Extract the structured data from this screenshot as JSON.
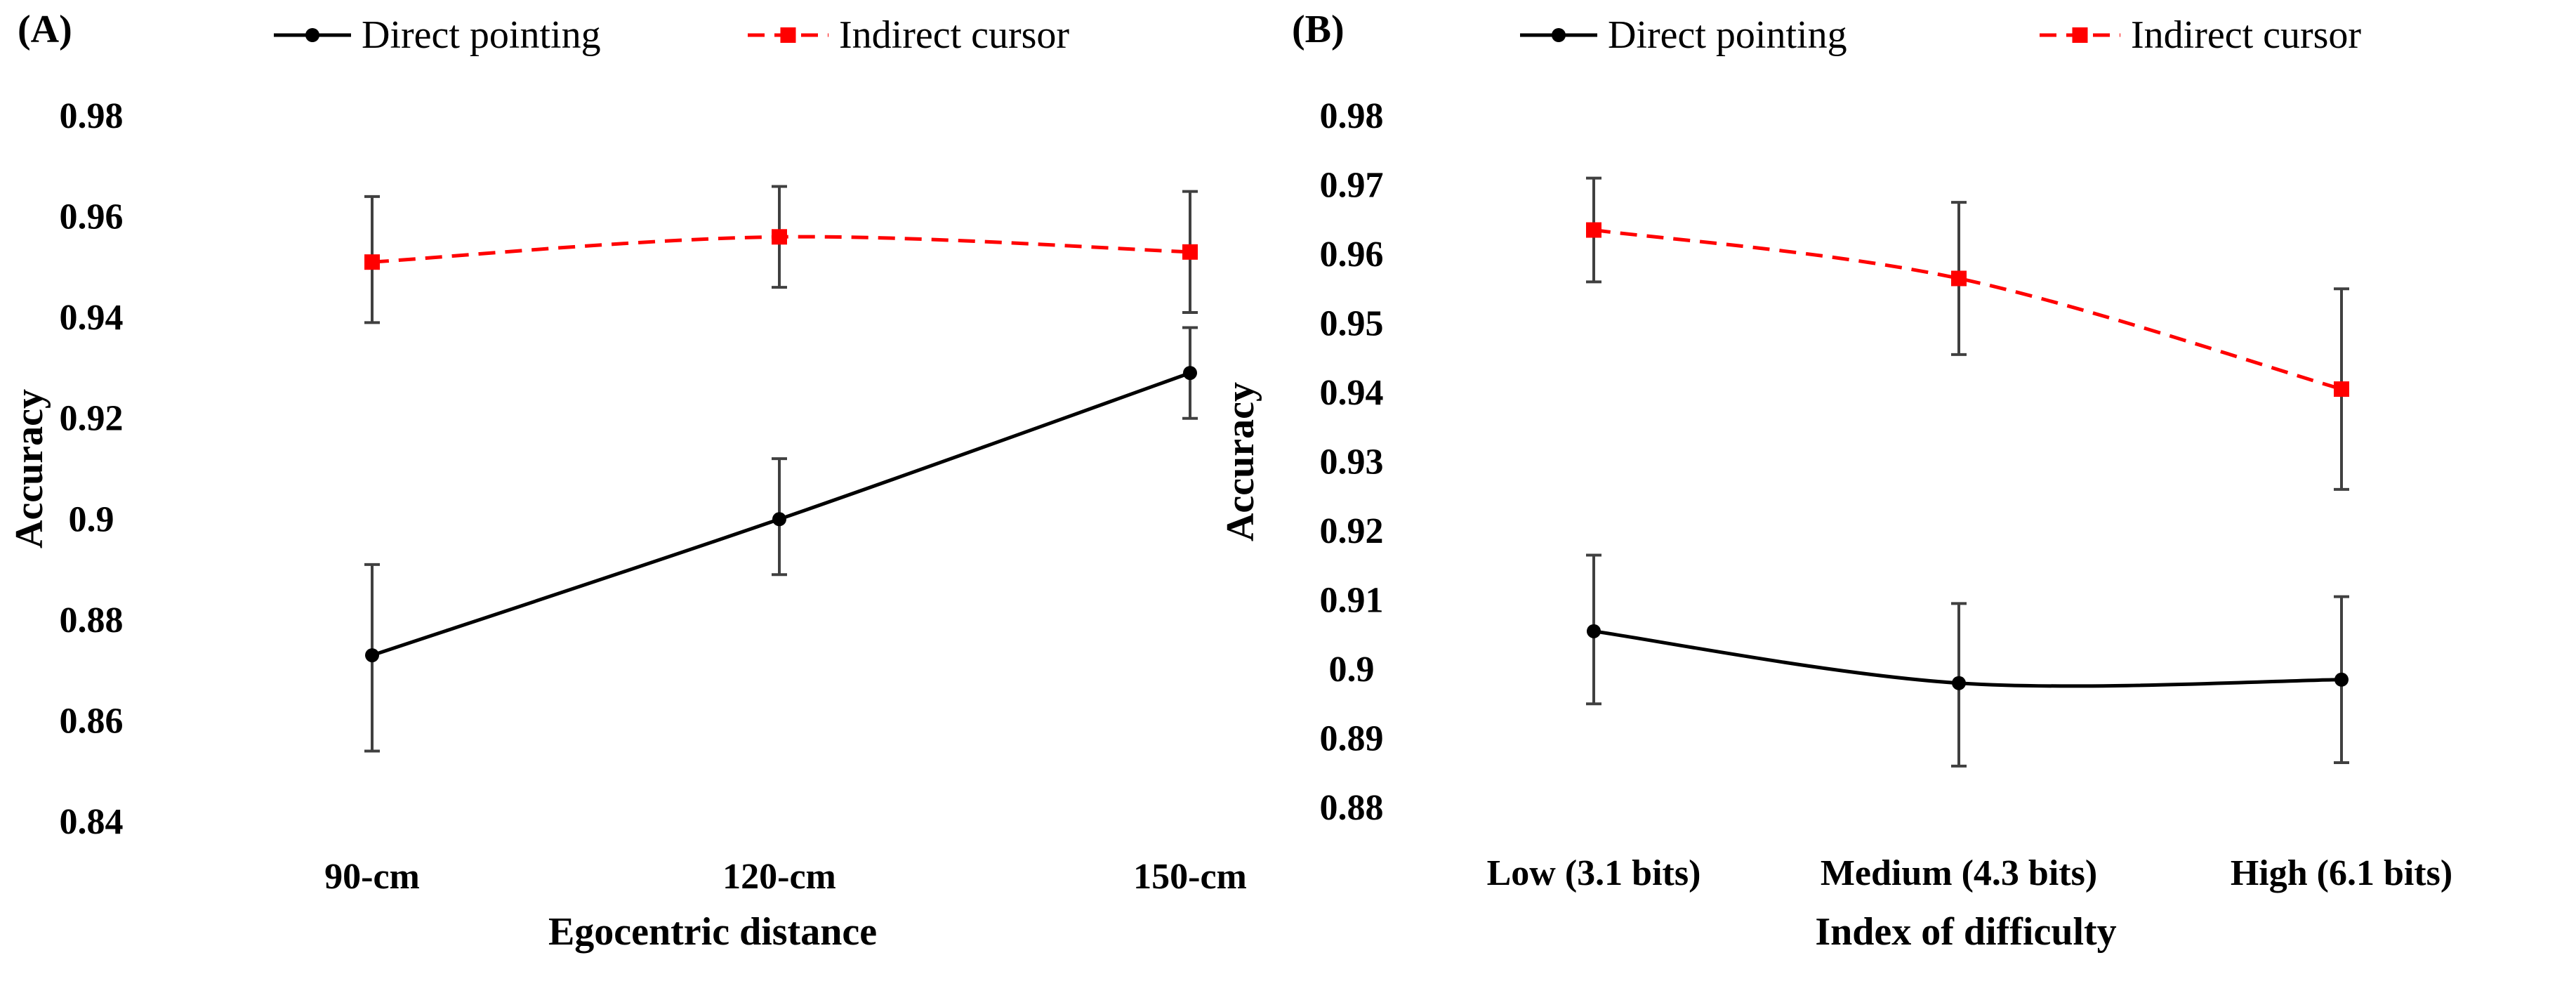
{
  "chart_data": [
    {
      "type": "line",
      "panel_label": "(A)",
      "title": "",
      "xlabel": "Egocentric distance",
      "ylabel": "Accuracy",
      "categories": [
        "90-cm",
        "120-cm",
        "150-cm"
      ],
      "ylim": [
        0.84,
        0.98
      ],
      "yticks": [
        0.84,
        0.86,
        0.88,
        0.9,
        0.92,
        0.94,
        0.96,
        0.98
      ],
      "ytick_labels": [
        "0.84",
        "0.86",
        "0.88",
        "0.9",
        "0.92",
        "0.94",
        "0.96",
        "0.98"
      ],
      "grid": false,
      "legend_position": "top",
      "series": [
        {
          "name": "Direct pointing",
          "color": "#000000",
          "style": "solid",
          "marker": "circle",
          "values": [
            0.873,
            0.9,
            0.929
          ],
          "err_low": [
            0.854,
            0.889,
            0.92
          ],
          "err_high": [
            0.891,
            0.912,
            0.938
          ]
        },
        {
          "name": "Indirect cursor",
          "color": "#ff0000",
          "style": "dashed",
          "marker": "square",
          "values": [
            0.951,
            0.956,
            0.953
          ],
          "err_low": [
            0.939,
            0.946,
            0.941
          ],
          "err_high": [
            0.964,
            0.966,
            0.965
          ]
        }
      ]
    },
    {
      "type": "line",
      "panel_label": "(B)",
      "title": "",
      "xlabel": "Index of difficulty",
      "ylabel": "Accuracy",
      "categories": [
        "Low (3.1 bits)",
        "Medium (4.3 bits)",
        "High (6.1 bits)"
      ],
      "ylim": [
        0.88,
        0.98
      ],
      "yticks": [
        0.88,
        0.89,
        0.9,
        0.91,
        0.92,
        0.93,
        0.94,
        0.95,
        0.96,
        0.97,
        0.98
      ],
      "ytick_labels": [
        "0.88",
        "0.89",
        "0.9",
        "0.91",
        "0.92",
        "0.93",
        "0.94",
        "0.95",
        "0.96",
        "0.97",
        "0.98"
      ],
      "grid": false,
      "legend_position": "top",
      "series": [
        {
          "name": "Direct pointing",
          "color": "#000000",
          "style": "solid",
          "marker": "circle",
          "values": [
            0.9055,
            0.898,
            0.8985
          ],
          "err_low": [
            0.895,
            0.886,
            0.8865
          ],
          "err_high": [
            0.9165,
            0.9095,
            0.9105
          ]
        },
        {
          "name": "Indirect cursor",
          "color": "#ff0000",
          "style": "dashed",
          "marker": "square",
          "values": [
            0.9635,
            0.9565,
            0.9405
          ],
          "err_low": [
            0.956,
            0.9455,
            0.926
          ],
          "err_high": [
            0.971,
            0.9675,
            0.955
          ]
        }
      ]
    }
  ]
}
